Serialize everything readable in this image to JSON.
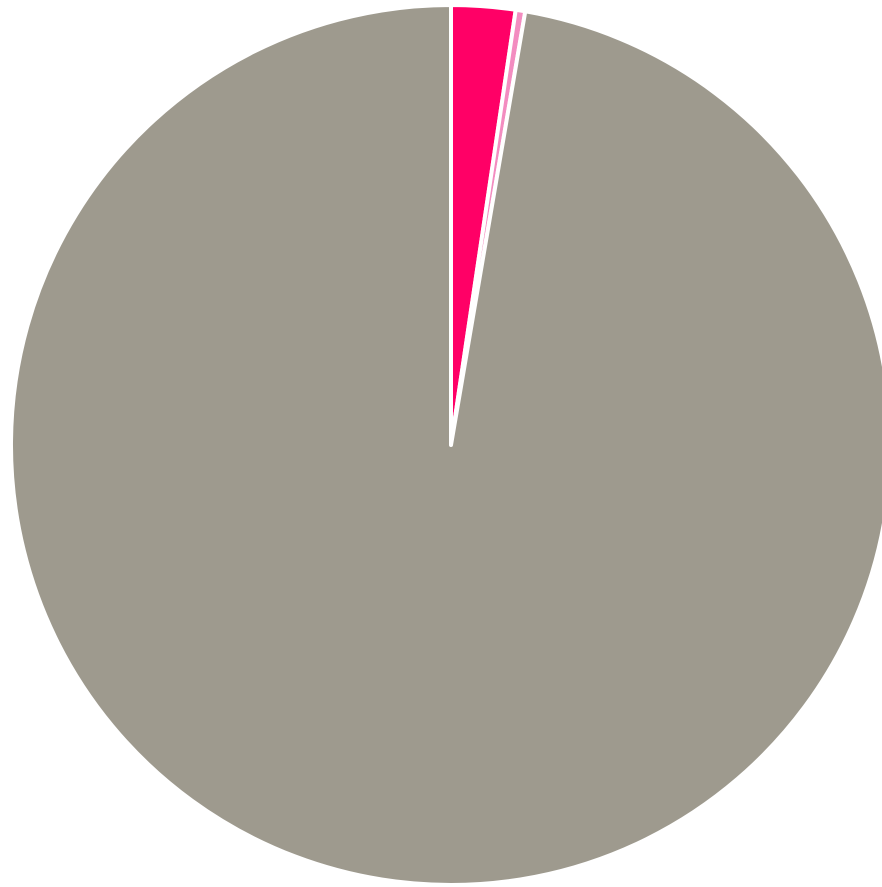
{
  "chart_data": {
    "type": "pie",
    "title": "",
    "start_angle_deg": 0,
    "direction": "clockwise",
    "slice_border_color": "#ffffff",
    "slices": [
      {
        "value": 2.35,
        "color": "#ff0066"
      },
      {
        "value": 0.35,
        "color": "#f38cc0"
      },
      {
        "value": 97.3,
        "color": "#9e9a8e"
      }
    ]
  }
}
